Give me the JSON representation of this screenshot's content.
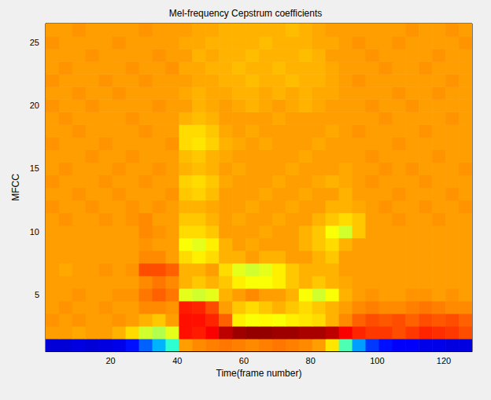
{
  "chart_data": {
    "type": "heatmap",
    "title": "Mel-frequency Cepstrum coefficients",
    "x_label": "Time(frame number)",
    "y_label": "MFCC",
    "xlim": [
      0.5,
      128.5
    ],
    "ylim": [
      0.5,
      26.5
    ],
    "xticks": [
      20,
      40,
      60,
      80,
      100,
      120
    ],
    "yticks": [
      5,
      10,
      15,
      20,
      25
    ],
    "zlim": [
      0,
      100
    ],
    "x_bins": [
      0.5,
      4.5,
      8.5,
      12.5,
      16.5,
      20.5,
      24.5,
      28.5,
      32.5,
      36.5,
      40.5,
      44.5,
      48.5,
      52.5,
      56.5,
      60.5,
      64.5,
      68.5,
      72.5,
      76.5,
      80.5,
      84.5,
      88.5,
      92.5,
      96.5,
      100.5,
      104.5,
      108.5,
      112.5,
      116.5,
      120.5,
      124.5,
      128.5
    ],
    "y_bins": [
      0.5,
      1.5,
      2.5,
      3.5,
      4.5,
      5.5,
      6.5,
      7.5,
      8.5,
      9.5,
      10.5,
      11.5,
      12.5,
      13.5,
      14.5,
      15.5,
      16.5,
      17.5,
      18.5,
      19.5,
      20.5,
      21.5,
      22.5,
      23.5,
      24.5,
      25.5,
      26.5
    ],
    "z": [
      [
        8,
        8,
        9,
        8,
        9,
        10,
        14,
        22,
        30,
        42,
        72,
        74,
        75,
        76,
        75,
        74,
        75,
        76,
        75,
        74,
        72,
        65,
        45,
        28,
        18,
        14,
        12,
        12,
        10,
        10,
        9,
        9
      ],
      [
        72,
        72,
        71,
        72,
        72,
        70,
        66,
        58,
        55,
        60,
        86,
        85,
        88,
        94,
        97,
        98,
        98,
        97,
        97,
        96,
        96,
        94,
        88,
        84,
        82,
        82,
        80,
        82,
        84,
        83,
        82,
        80
      ],
      [
        73,
        72,
        73,
        72,
        72,
        73,
        72,
        70,
        68,
        72,
        86,
        86,
        84,
        78,
        64,
        62,
        63,
        62,
        64,
        65,
        66,
        70,
        74,
        78,
        80,
        79,
        80,
        78,
        80,
        79,
        80,
        78
      ],
      [
        72,
        73,
        72,
        72,
        73,
        72,
        72,
        74,
        74,
        73,
        85,
        84,
        80,
        72,
        68,
        66,
        68,
        70,
        68,
        66,
        68,
        70,
        72,
        74,
        75,
        74,
        74,
        75,
        76,
        75,
        74,
        74
      ],
      [
        72,
        72,
        73,
        72,
        72,
        73,
        73,
        76,
        78,
        76,
        60,
        58,
        60,
        70,
        72,
        74,
        72,
        72,
        70,
        62,
        58,
        62,
        70,
        72,
        73,
        72,
        72,
        73,
        73,
        72,
        73,
        72
      ],
      [
        72,
        72,
        72,
        72,
        72,
        72,
        72,
        74,
        76,
        74,
        70,
        68,
        70,
        68,
        64,
        62,
        62,
        64,
        68,
        70,
        68,
        70,
        71,
        72,
        72,
        72,
        72,
        72,
        72,
        72,
        72,
        72
      ],
      [
        72,
        71,
        72,
        72,
        73,
        72,
        73,
        80,
        80,
        78,
        70,
        70,
        72,
        66,
        60,
        58,
        60,
        64,
        68,
        70,
        70,
        70,
        72,
        72,
        72,
        72,
        72,
        72,
        72,
        72,
        72,
        72
      ],
      [
        72,
        72,
        72,
        72,
        72,
        72,
        72,
        74,
        74,
        72,
        66,
        64,
        66,
        70,
        70,
        72,
        70,
        70,
        72,
        72,
        70,
        68,
        72,
        72,
        72,
        72,
        72,
        72,
        72,
        72,
        72,
        72
      ],
      [
        72,
        72,
        72,
        72,
        72,
        72,
        72,
        73,
        72,
        72,
        62,
        60,
        64,
        70,
        72,
        71,
        72,
        72,
        72,
        70,
        68,
        66,
        70,
        72,
        72,
        72,
        72,
        72,
        72,
        72,
        72,
        72
      ],
      [
        72,
        72,
        72,
        72,
        72,
        72,
        72,
        74,
        73,
        72,
        66,
        66,
        68,
        72,
        72,
        72,
        71,
        72,
        72,
        70,
        68,
        62,
        58,
        68,
        72,
        72,
        72,
        72,
        72,
        72,
        72,
        72
      ],
      [
        72,
        73,
        72,
        72,
        73,
        72,
        73,
        74,
        72,
        72,
        68,
        68,
        70,
        72,
        71,
        72,
        72,
        71,
        72,
        72,
        70,
        68,
        66,
        68,
        72,
        72,
        73,
        72,
        72,
        73,
        72,
        72
      ],
      [
        73,
        72,
        72,
        73,
        72,
        72,
        73,
        72,
        73,
        72,
        70,
        70,
        71,
        72,
        72,
        71,
        72,
        72,
        71,
        72,
        72,
        70,
        70,
        71,
        72,
        73,
        72,
        72,
        73,
        72,
        72,
        73
      ],
      [
        72,
        72,
        73,
        72,
        72,
        73,
        72,
        72,
        72,
        73,
        68,
        67,
        69,
        72,
        72,
        72,
        71,
        72,
        72,
        71,
        72,
        72,
        70,
        72,
        72,
        72,
        73,
        72,
        72,
        72,
        73,
        72
      ],
      [
        73,
        72,
        72,
        72,
        73,
        72,
        72,
        73,
        72,
        72,
        67,
        66,
        68,
        71,
        72,
        72,
        72,
        71,
        72,
        72,
        71,
        70,
        71,
        72,
        73,
        72,
        72,
        72,
        73,
        72,
        72,
        72
      ],
      [
        72,
        73,
        72,
        72,
        72,
        73,
        72,
        72,
        73,
        72,
        70,
        69,
        70,
        72,
        71,
        72,
        72,
        72,
        71,
        72,
        72,
        72,
        71,
        72,
        72,
        73,
        72,
        73,
        72,
        72,
        72,
        73
      ],
      [
        72,
        72,
        72,
        73,
        72,
        72,
        73,
        72,
        72,
        72,
        69,
        68,
        70,
        71,
        72,
        72,
        72,
        72,
        72,
        71,
        72,
        72,
        72,
        72,
        73,
        72,
        72,
        72,
        72,
        73,
        72,
        72
      ],
      [
        73,
        72,
        72,
        72,
        73,
        72,
        72,
        72,
        72,
        73,
        66,
        65,
        67,
        70,
        71,
        72,
        71,
        72,
        72,
        72,
        71,
        72,
        72,
        72,
        72,
        72,
        73,
        72,
        72,
        72,
        72,
        72
      ],
      [
        72,
        72,
        73,
        72,
        72,
        72,
        72,
        73,
        72,
        72,
        66,
        66,
        68,
        71,
        72,
        71,
        72,
        72,
        72,
        72,
        72,
        71,
        72,
        73,
        72,
        72,
        72,
        72,
        73,
        72,
        72,
        72
      ],
      [
        72,
        73,
        72,
        72,
        72,
        72,
        73,
        72,
        72,
        72,
        70,
        69,
        70,
        72,
        72,
        72,
        72,
        71,
        72,
        72,
        72,
        72,
        72,
        72,
        72,
        73,
        72,
        72,
        72,
        72,
        73,
        72
      ],
      [
        73,
        72,
        72,
        73,
        72,
        72,
        72,
        72,
        73,
        72,
        72,
        70,
        71,
        72,
        71,
        70,
        71,
        72,
        71,
        70,
        71,
        72,
        72,
        72,
        73,
        72,
        72,
        73,
        72,
        72,
        72,
        72
      ],
      [
        72,
        72,
        73,
        72,
        72,
        73,
        72,
        72,
        72,
        72,
        71,
        70,
        71,
        71,
        70,
        70,
        71,
        70,
        71,
        70,
        71,
        71,
        72,
        72,
        72,
        72,
        73,
        72,
        72,
        73,
        72,
        72
      ],
      [
        73,
        72,
        72,
        72,
        73,
        72,
        72,
        73,
        72,
        72,
        72,
        71,
        71,
        70,
        70,
        69,
        70,
        70,
        69,
        70,
        70,
        71,
        72,
        73,
        72,
        72,
        72,
        72,
        72,
        72,
        73,
        72
      ],
      [
        72,
        73,
        72,
        72,
        72,
        72,
        73,
        72,
        72,
        73,
        71,
        71,
        70,
        70,
        69,
        70,
        70,
        69,
        70,
        70,
        70,
        71,
        72,
        72,
        72,
        73,
        72,
        72,
        73,
        72,
        72,
        72
      ],
      [
        72,
        72,
        72,
        73,
        72,
        72,
        72,
        72,
        73,
        72,
        72,
        70,
        71,
        70,
        70,
        69,
        70,
        70,
        70,
        69,
        70,
        72,
        72,
        72,
        73,
        72,
        72,
        72,
        72,
        73,
        72,
        72
      ],
      [
        73,
        72,
        72,
        72,
        72,
        73,
        72,
        72,
        72,
        72,
        71,
        71,
        70,
        70,
        70,
        70,
        69,
        70,
        70,
        70,
        71,
        71,
        72,
        73,
        72,
        72,
        73,
        72,
        72,
        72,
        72,
        73
      ],
      [
        72,
        72,
        73,
        72,
        72,
        72,
        72,
        73,
        72,
        72,
        72,
        71,
        71,
        70,
        70,
        70,
        70,
        70,
        69,
        70,
        71,
        72,
        72,
        72,
        72,
        72,
        72,
        73,
        72,
        72,
        73,
        72
      ]
    ]
  }
}
